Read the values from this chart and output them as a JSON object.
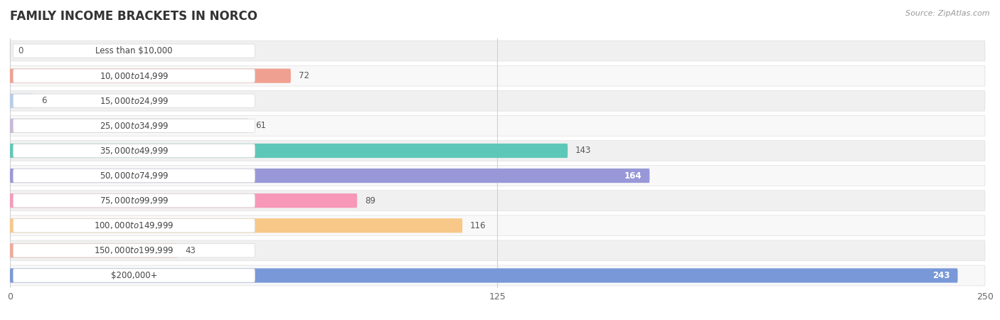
{
  "title": "FAMILY INCOME BRACKETS IN NORCO",
  "source": "Source: ZipAtlas.com",
  "categories": [
    "Less than $10,000",
    "$10,000 to $14,999",
    "$15,000 to $24,999",
    "$25,000 to $34,999",
    "$35,000 to $49,999",
    "$50,000 to $74,999",
    "$75,000 to $99,999",
    "$100,000 to $149,999",
    "$150,000 to $199,999",
    "$200,000+"
  ],
  "values": [
    0,
    72,
    6,
    61,
    143,
    164,
    89,
    116,
    43,
    243
  ],
  "bar_colors": [
    "#f5cfa0",
    "#f0a090",
    "#b8cce8",
    "#c9b8d8",
    "#5ec8b8",
    "#9898d8",
    "#f898b8",
    "#f8c888",
    "#f0a898",
    "#7898d8"
  ],
  "inside_label_indices": [
    5,
    9
  ],
  "xlim": [
    0,
    250
  ],
  "xticks": [
    0,
    125,
    250
  ],
  "row_bg_color": "#f0f0f0",
  "row_alt_bg_color": "#f8f8f8"
}
